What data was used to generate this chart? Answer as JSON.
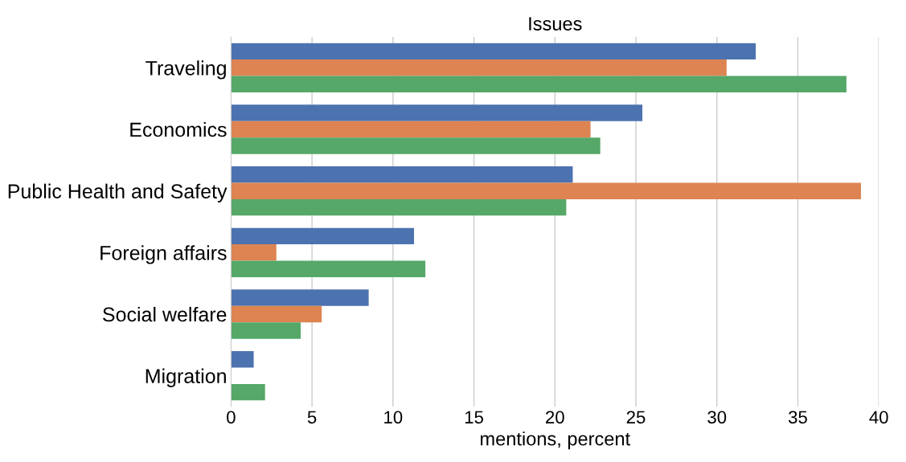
{
  "chart_data": {
    "type": "bar",
    "orientation": "horizontal",
    "title": "Issues",
    "xlabel": "mentions, percent",
    "categories": [
      "Traveling",
      "Economics",
      "Public Health and Safety",
      "Foreign affairs",
      "Social welfare",
      "Migration"
    ],
    "series": [
      {
        "color": "#4c72b0",
        "values": [
          32.4,
          25.4,
          21.1,
          11.3,
          8.5,
          1.4
        ]
      },
      {
        "color": "#dd8452",
        "values": [
          30.6,
          22.2,
          38.9,
          2.8,
          5.6,
          0
        ]
      },
      {
        "color": "#55a868",
        "values": [
          38.0,
          22.8,
          20.7,
          12.0,
          4.3,
          2.1
        ]
      }
    ],
    "xlim": [
      0,
      40
    ],
    "xticks": [
      0,
      5,
      10,
      15,
      20,
      25,
      30,
      35,
      40
    ],
    "grid": "x"
  }
}
